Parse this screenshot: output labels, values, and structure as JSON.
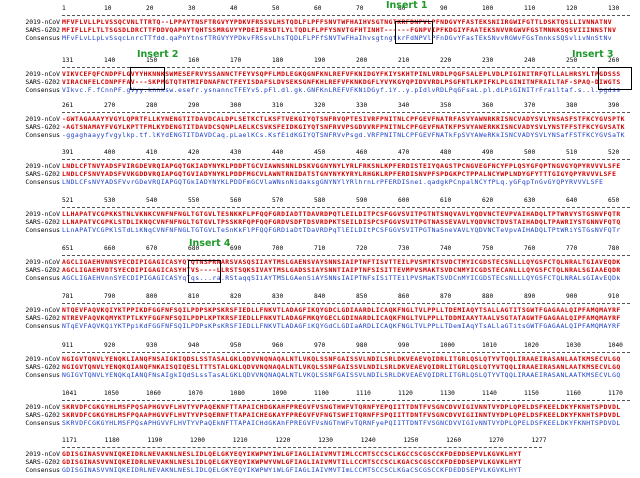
{
  "blocks": [
    {
      "ticks": [
        "1",
        "10",
        "20",
        "30",
        "40",
        "50",
        "60",
        "70",
        "80",
        "90",
        "100",
        "110",
        "120",
        "130"
      ],
      "rows": [
        {
          "label": "2019-nCoV",
          "seq": "MFVFLVLLPLVSSQCVNLTTRTQ--LPPAYTNSFTRGVYYPDKVFRSSVLHSTQDLFLPFFSNVTWFHAIHVSGTNGTKRFDNPVLPFNDGVYFASTEKSNIIRGWIFGTTLDSKTQSLLIVNNATNV"
        },
        {
          "label": "SARS-GZ02",
          "seq": "MFIFLLFLTLTSGSDLDRCTTFDDVQAPNYTQHTSSMRGVYYPDEIFRSDTLYLTQDLFLPFYSNVTGFHTINHT------FGNPVIPFKDGIYFAATEKSNVVRGWVFGSTMNNKSQSVIIINNSTNV"
        },
        {
          "label": "Consensus",
          "seq": "MFvFLvLLpLvSsqcLnrcTTfdd.qaPnYtnsfTRGVYYPDkvFRSsvLhsTQDLFLPFfSNVTwFHaIhvsgtngtkrFdNPVlPFnDGvYFasTEkSNvvRGWvFGsTmnksSQSvlivNnStNv"
        }
      ]
    },
    {
      "ticks": [
        "131",
        "140",
        "150",
        "160",
        "170",
        "180",
        "190",
        "200",
        "210",
        "220",
        "230",
        "240",
        "250",
        "260"
      ],
      "rows": [
        {
          "label": "2019-nCoV",
          "seq": "VIKVCEFQFCNDPFLGVYYHKNNKSWMESEFRVYSSANNCTFEYVSQPFLMDLEGKQGNFKNLREFVFKNIDGYFKIYSKHTPINLVRDLPQGFSALEPLVDLPIGINITRFQTLLALHRSYLTPGDSSS"
        },
        {
          "label": "SARS-GZ02",
          "seq": "VIRACNFELCDNPFFAV---SKPMGTQTHTMIFDNAFNCTFEYISDAFSLDVSEKSGNFKHLREFVFKNKDGFLYVYKGYQPIDVVRDLPSGFNTLKPIFKLPLGINITNFRAILTAF-SPAQ-DIWGTS"
        },
        {
          "label": "Consensus",
          "seq": "VIkvc.F.fCnnPF.gVyy.knnksw.esefr.ysnanncTFEYvS.pFl.dl.gk.GNFKnLREFVFKNiDGyf.iY..y.pIdlvRDLPqGFsaL.pl.dLPiGINITrFrailtaf.s..l.pgdss"
        }
      ]
    },
    {
      "ticks": [
        "261",
        "270",
        "280",
        "290",
        "300",
        "310",
        "320",
        "330",
        "340",
        "350",
        "360",
        "370",
        "380",
        "390"
      ],
      "rows": [
        {
          "label": "2019-nCoV",
          "seq": "-GWTAGAAAYYVGYLQPRTFLLKYNENGTITDAVDCALDPLSETKCTLKSFTVEKGIYQTSNFRVQPTESIVRFPNITNLCPFGEVFNATRFASVYAWNRKRISNCVADYSVLYNSASFSTFKCYGVSPTK"
        },
        {
          "label": "SARS-GZ02",
          "seq": "-AGTSNAMAYFVGYLKPTTFMLKYDENGTITDAVDCSQNPLAELKCSVKSFEIDKGIYQTSNFRVVPSGDVVRFPNITNLCPFGEVFNATKFPSVYAWERKKISNCVADYSVLYNSTFFSTFKCYGVSATK"
        },
        {
          "label": "Consensus",
          "seq": "-ggaghaayyfvgylkp.tf.lKYdENGTITDAVDCaq.pLaelKCs.KsfEidKGIYQTSNFRVvPsgd.VRFPNITNLCPFGEVFNATkFpSVYAWeRKkISNCVADYSVLYNSafFSTFKCYGVSaTK"
        }
      ]
    },
    {
      "ticks": [
        "391",
        "400",
        "410",
        "420",
        "430",
        "440",
        "450",
        "460",
        "470",
        "480",
        "490",
        "500",
        "510",
        "520"
      ],
      "rows": [
        {
          "label": "2019-nCoV",
          "seq": "LNDLCFTNVYADSFVIRGDEVRQIAPGQTGKIADYNYKLPDDFTGCVIAWNSNNLDSKVGGNYNYLYRLFRKSNLKPFERDISTEIYQAGSTPCNGVEGFNCYFPLQSYGFQPTNGVGYQPYRVVVLSFE"
        },
        {
          "label": "SARS-GZ02",
          "seq": "LNDLCFSNVYADSFVVKGDDVRQIAPGQTGVIADYNYKLPDDFMGCVLAWNTRNIDATSTGNYNYKYRYLRHGKLRPFERDISNVPFSPDGKPCTPPALNCYWPLNDYGFYTTTGIGYQPYRVVVLSFE"
        },
        {
          "label": "Consensus",
          "seq": "LNDLCFsNVYADSFVvrGDeVRQIAPGQTGkIADYNYKLPDDFmGCVlaWNsnNidaksgGNYNYlYRlhrnLrPFERDISnei.qadgkPCnpalNCYfPLq.yGFqpTnGvGYQPYRVVVLSFE"
        }
      ]
    },
    {
      "ticks": [
        "521",
        "530",
        "540",
        "550",
        "560",
        "570",
        "580",
        "590",
        "600",
        "610",
        "620",
        "630",
        "640",
        "650"
      ],
      "rows": [
        {
          "label": "2019-nCoV",
          "seq": "LLHAPATVCGPKKSTNLVKNKCVNFNFNGLTGTGVLTESNKKFLPFQQFGRDIADTTDAVRDPQTLEILDITPCSFGGVSVITPGTNTSNQVAVLYQDVNCTEVPVAIHADQLTPTWRVYSTGSNVFQTR"
        },
        {
          "label": "SARS-GZ02",
          "seq": "LLNAPATVCGPKLSTDLIKNQCVNFNFNGLTGTGVLTPSSKRFQPFQQFGRDVSDFTDSVRDPKTSEILDISPCSFGGVSVITPGTNASSEVAVLYQDVNCTDVSTAIHADQLTPAWRIYSTGNNVFQTQ"
        },
        {
          "label": "Consensus",
          "seq": "LLnAPATVCGPKlSTdLiKNqCVNFNFNGLTGTGVLTeSnKkFlPFQQFGRDiaDtTDaVRDPqTlEILDItPCSFGGVSVITPGTNaSneVAVLYQDVNCTeVpvAIHADQLTPtWRiYSTGsNVFQTr"
        }
      ]
    },
    {
      "ticks": [
        "651",
        "660",
        "670",
        "680",
        "690",
        "700",
        "710",
        "720",
        "730",
        "740",
        "750",
        "760",
        "770",
        "780"
      ],
      "rows": [
        {
          "label": "2019-nCoV",
          "seq": "AGCLIGAEHVNNSYECDIPIGAGICASYQTQTNSPRRARSVASQSIIAYTMSLGAENSVAYSNNSIAIPTNFTISVTTEILPVSMTKTSVDCTMYICGDSTECSNLLLQYGSFCTQLNRALTGIAVEQDK"
        },
        {
          "label": "SARS-GZ02",
          "seq": "AGCLIGAEHVDTSYECDIPIGAGICASYHTVS----LLRSTSQKSIVAYTMSLGADSSIAYSNNTIAIPTNFSISITTEVMPVSMAKTSVDCNMYICGDSTECANLLLQYGSFCTQLNRALSGIAAEQDR"
        },
        {
          "label": "Consensus",
          "seq": "AGCLIGAEHVnnSYECDIPIGAGICASYqTqs...ra.RStaqqSIiAYTMSLGAenSiAYSNNsIAIPTNFsISiTTEilPVSMaKTSVDCnMYICGDSTECsNLLLQYGSFCTQLNRALsGIAvEQDk"
        }
      ]
    },
    {
      "ticks": [
        "781",
        "790",
        "800",
        "810",
        "820",
        "830",
        "840",
        "850",
        "860",
        "870",
        "880",
        "890",
        "900",
        "910"
      ],
      "rows": [
        {
          "label": "2019-nCoV",
          "seq": "NTQEVFAQVKQIYKTPPIKDFGGFNFSQILPDPSKPSKRSFIEDLLFNKVTLADAGFIKQYGDCLGDIAARDLICAQKFNGLTVLPPLLTDEMIAQYTSALLAGTITSGWTFGAGAALQIPFAMQMAYRF"
        },
        {
          "label": "SARS-GZ02",
          "seq": "NTREVFAQVKQMYKTPTLKYFGGFNFSQILPDPLKPTKRSFIEDLLFNKVTLADAGFMKQYGECLGDINARDLICAQKFNGLTVLPPLLTDDMIAAYTAALVSGTATAGWTFGAGAALQIPFAMQMAYRF"
        },
        {
          "label": "Consensus",
          "seq": "NTqEVFAQVKQiYKTPpiKdFGGFNFSQILPDPsKPsKRSFIEDLLFNKVTLADAGFiKQYGdCLGDIaARDLICAQKFNGLTVLPPLLTDemIAqYTsALlaGTitsGWTFGAGAALQIPFAMQMAYRF"
        }
      ]
    },
    {
      "ticks": [
        "911",
        "920",
        "930",
        "940",
        "950",
        "960",
        "970",
        "980",
        "990",
        "1000",
        "1010",
        "1020",
        "1030",
        "1040"
      ],
      "rows": [
        {
          "label": "2019-nCoV",
          "seq": "NGIGVTQNVLYENQKLIANQFNSAIGKIQDSLSSTASALGKLQDVVNQNAQALNTLVKQLSSNFGAISSVLNDILSRLDKVEAEVQIDRLITGRLQSLQTYVTQQLIRAAEIRASANLAATKMSECVLGQ"
        },
        {
          "label": "SARS-GZ02",
          "seq": "NGIGVTQNVLYENQKQIANQFNKAISQIQESLTTTSTALGKLQDVVNQNAQALNTLVKQLSSNFGAISSVLNDILSRLDKVEAEVQIDRLITGRLQSLQTYVTQQLIRAAEIRASANLAATKMSECVLGQ"
        },
        {
          "label": "Consensus",
          "seq": "NGIGVTQNVLYENQKqIANQFNsAIgkIQdSLssTasALGKLQDVVNQNAQALNTLVKQLSSNFGAISSVLNDILSRLDKVEAEVQIDRLITGRLQSLQTYVTQQLIRAAEIRASANLAATKMSECVLGQ"
        }
      ]
    },
    {
      "ticks": [
        "1041",
        "1050",
        "1060",
        "1070",
        "1080",
        "1090",
        "1100",
        "1110",
        "1120",
        "1130",
        "1140",
        "1150",
        "1160",
        "1170"
      ],
      "rows": [
        {
          "label": "2019-nCoV",
          "seq": "SKRVDFCGKGYHLMSFPQSAPHGVVFLHVTYVPAQEKNFTTAPAICHDGKAHFPREGVFVSNGTHWFVTQRNFYEPQIITTDNTFVSGNCDVVIGIVNNTVYDPLQPELDSFKEELDKYFKNHTSPDVDL"
        },
        {
          "label": "SARS-GZ02",
          "seq": "SKRVDFCGKGYHLMSFPQAAPHGVVFLHVTYVPSQERNFTTAPAICHEGKAYFPREGVFVFNGTSWFITQRNFFSPQIITTDNTFVSGNCDVVIGIINNTVYDPLQPELDSFKEELDKYFKNHTSPDVDL"
        },
        {
          "label": "Consensus",
          "seq": "SKRVDFCGKGYHLMSFPQsAPHGVVFLHVTYVPaQEkNFTTAPAICHdGKAhFPREGVFVsNGThWFvTQRNFyePQIITTDNTFVSGNCDVVIGIvNNTVYDPLQPELDSFKEELDKYFKNHTSPDVDL"
        }
      ]
    },
    {
      "ticks": [
        "1171",
        "1180",
        "1190",
        "1200",
        "1210",
        "1220",
        "1230",
        "1240",
        "1250",
        "1260",
        "1270",
        "1277"
      ],
      "rows": [
        {
          "label": "2019-nCoV",
          "seq": "GDISGINASVVNIQKEIDRLNEVAKNLNESLIDLQELGKYEQYIKWPWYIWLGFIAGLIAIVMVTIMLCCMTSCCSCLKGCCSCGSCCKFDEDDSEPVLKGVKLHYT"
        },
        {
          "label": "SARS-GZ02",
          "seq": "GDISGINASVVNIQKEIDRLNEVAKNLNESLIDLQELGKYEQYIKWPWYVWLGFIAGLIAIVMVTILLCCMTSCCSCLKGACSCGSCCKFDEDDSEPVLKGVKLHYT"
        },
        {
          "label": "Consensus",
          "seq": "GDISGINASVVNIQKEIDRLNEVAKNLNESLIDLQELGKYEQYIKWPWYiWLGFIAGLIAIVMVTImLCCMTSCCSCLKGaCSCGSCCKFDEDDSEPVLKGVKLHYT"
        }
      ]
    }
  ],
  "inserts": [
    {
      "label": "Insert 1"
    },
    {
      "label": "Insert 2"
    },
    {
      "label": "Insert 3"
    },
    {
      "label": "Insert 4"
    }
  ]
}
